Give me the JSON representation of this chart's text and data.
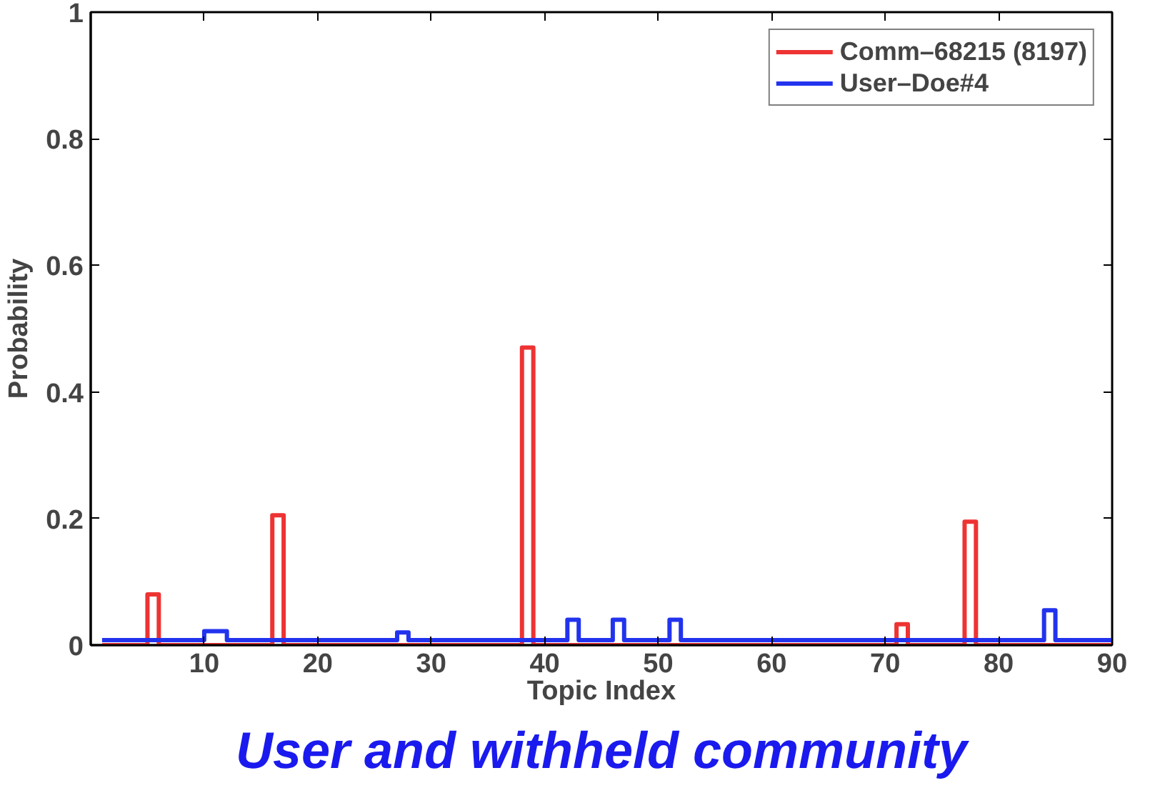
{
  "chart_data": {
    "type": "step",
    "xlabel": "Topic Index",
    "ylabel": "Probability",
    "annotations": [
      "User and withheld community"
    ],
    "x": [
      1,
      2,
      3,
      4,
      5,
      6,
      7,
      8,
      9,
      10,
      11,
      12,
      13,
      14,
      15,
      16,
      17,
      18,
      19,
      20,
      21,
      22,
      23,
      24,
      25,
      26,
      27,
      28,
      29,
      30,
      31,
      32,
      33,
      34,
      35,
      36,
      37,
      38,
      39,
      40,
      41,
      42,
      43,
      44,
      45,
      46,
      47,
      48,
      49,
      50,
      51,
      52,
      53,
      54,
      55,
      56,
      57,
      58,
      59,
      60,
      61,
      62,
      63,
      64,
      65,
      66,
      67,
      68,
      69,
      70,
      71,
      72,
      73,
      74,
      75,
      76,
      77,
      78,
      79,
      80,
      81,
      82,
      83,
      84,
      85,
      86,
      87,
      88,
      89,
      90
    ],
    "series": [
      {
        "name": "Comm–68215 (8197)",
        "color": "#ee3333",
        "values": [
          0,
          0,
          0,
          0,
          0.08,
          0,
          0,
          0,
          0,
          0,
          0,
          0,
          0,
          0,
          0,
          0.205,
          0,
          0,
          0,
          0,
          0,
          0,
          0,
          0,
          0,
          0,
          0,
          0,
          0,
          0,
          0,
          0,
          0,
          0,
          0,
          0,
          0,
          0.47,
          0,
          0,
          0,
          0,
          0,
          0,
          0,
          0,
          0,
          0,
          0,
          0,
          0,
          0,
          0,
          0,
          0,
          0,
          0,
          0,
          0,
          0,
          0,
          0,
          0,
          0,
          0,
          0,
          0,
          0,
          0,
          0,
          0.033,
          0,
          0,
          0,
          0,
          0,
          0.195,
          0,
          0,
          0,
          0,
          0,
          0,
          0,
          0,
          0,
          0,
          0,
          0,
          0
        ]
      },
      {
        "name": "User–Doe#4",
        "color": "#2233ee",
        "values": [
          0.008,
          0.008,
          0.008,
          0.008,
          0.008,
          0.008,
          0.008,
          0.008,
          0.008,
          0.022,
          0.022,
          0.008,
          0.008,
          0.008,
          0.008,
          0.008,
          0.008,
          0.008,
          0.008,
          0.008,
          0.008,
          0.008,
          0.008,
          0.008,
          0.008,
          0.008,
          0.02,
          0.008,
          0.008,
          0.008,
          0.008,
          0.008,
          0.008,
          0.008,
          0.008,
          0.008,
          0.008,
          0.008,
          0.008,
          0.008,
          0.008,
          0.04,
          0.008,
          0.008,
          0.008,
          0.04,
          0.008,
          0.008,
          0.008,
          0.008,
          0.04,
          0.008,
          0.008,
          0.008,
          0.008,
          0.008,
          0.008,
          0.008,
          0.008,
          0.008,
          0.008,
          0.008,
          0.008,
          0.008,
          0.008,
          0.008,
          0.008,
          0.008,
          0.008,
          0.008,
          0.008,
          0.008,
          0.008,
          0.008,
          0.008,
          0.008,
          0.008,
          0.008,
          0.008,
          0.008,
          0.008,
          0.008,
          0.008,
          0.055,
          0.008,
          0.008,
          0.008,
          0.008,
          0.008,
          0.008
        ]
      }
    ],
    "xlim": [
      0,
      90
    ],
    "xticks": [
      10,
      20,
      30,
      40,
      50,
      60,
      70,
      80,
      90
    ],
    "ylim": [
      0,
      1
    ],
    "yticks": [
      0,
      0.2,
      0.4,
      0.6,
      0.8,
      1
    ],
    "legend": "top right"
  }
}
